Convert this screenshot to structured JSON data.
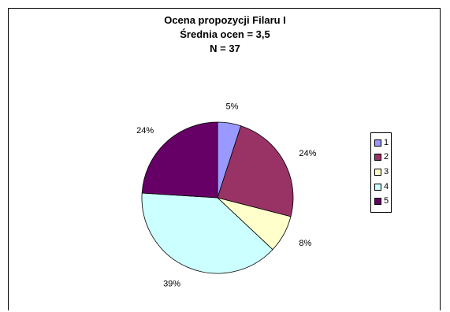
{
  "chart_data": {
    "type": "pie",
    "title_lines": [
      "Ocena propozycji Filaru I",
      "Średnia ocen = 3,5",
      "N = 37"
    ],
    "categories": [
      "1",
      "2",
      "3",
      "4",
      "5"
    ],
    "values": [
      5,
      24,
      8,
      39,
      24
    ],
    "value_labels": [
      "5%",
      "24%",
      "8%",
      "39%",
      "24%"
    ],
    "colors": [
      "#9999FF",
      "#993366",
      "#FFFFCC",
      "#CCFFFF",
      "#660066"
    ],
    "legend_position": "right",
    "start_angle": "12 o'clock",
    "direction": "clockwise"
  }
}
